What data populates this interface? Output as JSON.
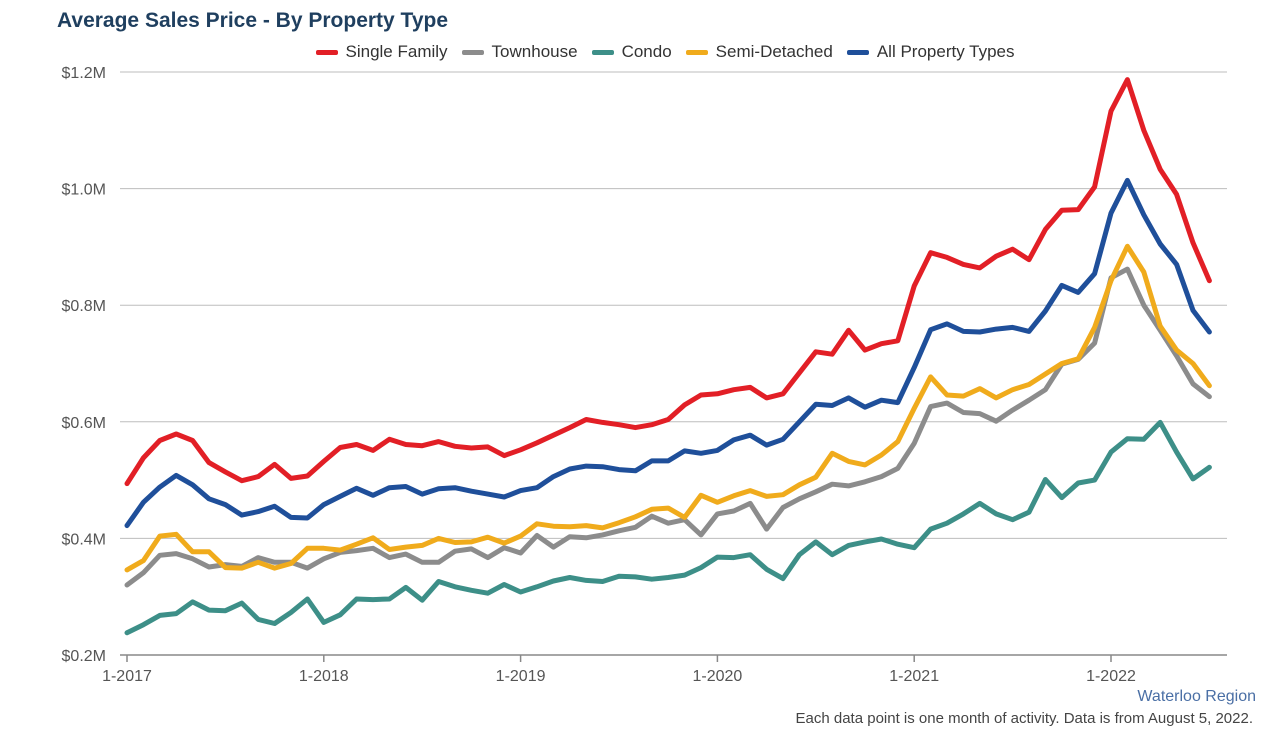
{
  "chart_data": {
    "type": "line",
    "title": "Average Sales Price - By Property Type",
    "xlabel": "",
    "ylabel": "",
    "x_ticks": [
      "1-2017",
      "1-2018",
      "1-2019",
      "1-2020",
      "1-2021",
      "1-2022"
    ],
    "y_ticks": [
      "$0.2M",
      "$0.4M",
      "$0.6M",
      "$0.8M",
      "$1.0M",
      "$1.2M"
    ],
    "ylim": [
      0.2,
      1.2
    ],
    "y_unit": "$M",
    "x_start": "2017-01",
    "grid": true,
    "legend_position": "top",
    "series": [
      {
        "name": "Single Family",
        "color": "#e21f26",
        "values": [
          0.494,
          0.538,
          0.568,
          0.579,
          0.568,
          0.53,
          0.514,
          0.499,
          0.506,
          0.527,
          0.503,
          0.507,
          0.532,
          0.556,
          0.561,
          0.551,
          0.57,
          0.561,
          0.559,
          0.566,
          0.558,
          0.555,
          0.557,
          0.542,
          0.552,
          0.564,
          0.577,
          0.59,
          0.604,
          0.599,
          0.595,
          0.59,
          0.595,
          0.604,
          0.629,
          0.646,
          0.648,
          0.655,
          0.659,
          0.641,
          0.648,
          0.684,
          0.72,
          0.716,
          0.757,
          0.723,
          0.734,
          0.739,
          0.833,
          0.89,
          0.882,
          0.87,
          0.864,
          0.884,
          0.896,
          0.878,
          0.93,
          0.963,
          0.964,
          1.003,
          1.133,
          1.187,
          1.1,
          1.033,
          0.99,
          0.907,
          0.842
        ]
      },
      {
        "name": "Townhouse",
        "color": "#8c8c8c",
        "values": [
          0.32,
          0.341,
          0.371,
          0.374,
          0.365,
          0.351,
          0.355,
          0.352,
          0.367,
          0.359,
          0.359,
          0.349,
          0.365,
          0.376,
          0.379,
          0.383,
          0.367,
          0.373,
          0.359,
          0.359,
          0.378,
          0.382,
          0.367,
          0.384,
          0.375,
          0.405,
          0.385,
          0.403,
          0.401,
          0.406,
          0.413,
          0.419,
          0.438,
          0.426,
          0.432,
          0.406,
          0.442,
          0.447,
          0.46,
          0.416,
          0.453,
          0.468,
          0.48,
          0.493,
          0.49,
          0.497,
          0.506,
          0.52,
          0.563,
          0.626,
          0.632,
          0.616,
          0.614,
          0.601,
          0.62,
          0.637,
          0.655,
          0.699,
          0.707,
          0.735,
          0.847,
          0.862,
          0.8,
          0.757,
          0.713,
          0.665,
          0.643
        ]
      },
      {
        "name": "Condo",
        "color": "#3d8f88",
        "values": [
          0.238,
          0.252,
          0.268,
          0.271,
          0.291,
          0.277,
          0.276,
          0.289,
          0.261,
          0.254,
          0.273,
          0.296,
          0.256,
          0.269,
          0.296,
          0.295,
          0.296,
          0.316,
          0.294,
          0.326,
          0.317,
          0.311,
          0.306,
          0.321,
          0.308,
          0.317,
          0.327,
          0.333,
          0.328,
          0.326,
          0.335,
          0.334,
          0.33,
          0.333,
          0.337,
          0.35,
          0.368,
          0.367,
          0.372,
          0.347,
          0.331,
          0.372,
          0.394,
          0.372,
          0.388,
          0.394,
          0.399,
          0.39,
          0.384,
          0.416,
          0.426,
          0.442,
          0.46,
          0.442,
          0.432,
          0.445,
          0.501,
          0.47,
          0.495,
          0.5,
          0.548,
          0.571,
          0.57,
          0.599,
          0.548,
          0.502,
          0.522
        ]
      },
      {
        "name": "Semi-Detached",
        "color": "#f0ab1c",
        "values": [
          0.346,
          0.362,
          0.404,
          0.407,
          0.377,
          0.377,
          0.35,
          0.349,
          0.359,
          0.349,
          0.357,
          0.383,
          0.383,
          0.38,
          0.39,
          0.401,
          0.381,
          0.385,
          0.388,
          0.4,
          0.393,
          0.394,
          0.402,
          0.392,
          0.404,
          0.425,
          0.421,
          0.42,
          0.422,
          0.418,
          0.427,
          0.437,
          0.45,
          0.452,
          0.436,
          0.474,
          0.462,
          0.473,
          0.482,
          0.472,
          0.475,
          0.492,
          0.505,
          0.546,
          0.532,
          0.526,
          0.543,
          0.566,
          0.623,
          0.677,
          0.646,
          0.644,
          0.657,
          0.641,
          0.655,
          0.664,
          0.682,
          0.7,
          0.708,
          0.762,
          0.842,
          0.901,
          0.857,
          0.764,
          0.723,
          0.7,
          0.662
        ]
      },
      {
        "name": "All Property Types",
        "color": "#1f4f9a",
        "values": [
          0.422,
          0.462,
          0.488,
          0.508,
          0.492,
          0.468,
          0.458,
          0.44,
          0.446,
          0.455,
          0.436,
          0.435,
          0.458,
          0.472,
          0.486,
          0.474,
          0.487,
          0.489,
          0.476,
          0.485,
          0.487,
          0.481,
          0.476,
          0.471,
          0.482,
          0.487,
          0.506,
          0.519,
          0.524,
          0.523,
          0.518,
          0.516,
          0.533,
          0.533,
          0.55,
          0.546,
          0.551,
          0.569,
          0.577,
          0.56,
          0.57,
          0.6,
          0.63,
          0.628,
          0.641,
          0.625,
          0.637,
          0.633,
          0.693,
          0.758,
          0.768,
          0.755,
          0.754,
          0.759,
          0.762,
          0.755,
          0.79,
          0.834,
          0.822,
          0.854,
          0.958,
          1.014,
          0.955,
          0.905,
          0.87,
          0.791,
          0.754
        ]
      }
    ]
  },
  "annotations": {
    "region": "Waterloo Region",
    "footnote": "Each data point is one month of activity. Data is from August 5, 2022."
  }
}
